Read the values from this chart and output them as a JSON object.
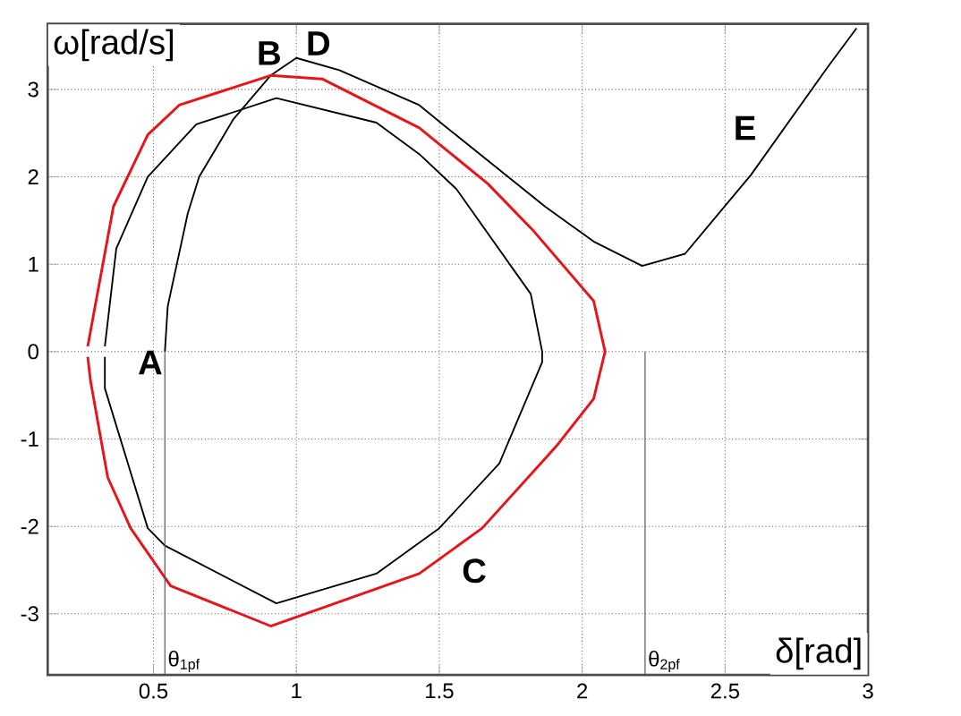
{
  "chart_data": {
    "type": "line",
    "xlabel": "δ[rad]",
    "ylabel": "ω[rad/s]",
    "xlim": [
      0.13,
      3
    ],
    "ylim": [
      -3.7,
      3.75
    ],
    "xticks": [
      0.5,
      1,
      1.5,
      2,
      2.5,
      3
    ],
    "yticks": [
      -3,
      -2,
      -1,
      0,
      1,
      2,
      3
    ],
    "grid": true,
    "line_style": "solid",
    "series": [
      {
        "color": "#000000",
        "x": [
          0.54,
          0.55,
          0.62,
          0.66,
          0.78,
          0.91,
          1.0,
          1.15,
          1.43,
          1.52,
          1.87,
          2.04,
          2.21,
          2.36,
          2.59,
          2.86,
          2.96
        ],
        "values": [
          0,
          0.52,
          1.58,
          2,
          2.66,
          3.16,
          3.36,
          3.22,
          2.82,
          2.58,
          1.66,
          1.26,
          0.98,
          1.12,
          2.02,
          3.26,
          3.7
        ]
      },
      {
        "color": "#000000",
        "x": [
          0.33,
          0.37,
          0.48,
          0.65,
          0.93,
          1.28,
          1.43,
          1.56,
          1.82,
          1.86,
          1.86,
          1.71,
          1.5,
          1.28,
          0.93,
          0.54,
          0.48,
          0.33,
          0.33
        ],
        "values": [
          0.06,
          1.18,
          2.0,
          2.6,
          2.9,
          2.62,
          2.26,
          1.86,
          0.66,
          0,
          -0.12,
          -1.28,
          -2.02,
          -2.54,
          -2.88,
          -2.22,
          -2.02,
          -0.42,
          -0.06
        ]
      },
      {
        "color": "#e8141a",
        "x": [
          0.27,
          0.36,
          0.48,
          0.59,
          0.91,
          1.09,
          1.43,
          1.67,
          1.83,
          2.04,
          2.08,
          2.04,
          1.91,
          1.65,
          1.43,
          0.91,
          0.56,
          0.42,
          0.34,
          0.28,
          0.27
        ],
        "values": [
          0.06,
          1.66,
          2.48,
          2.82,
          3.16,
          3.12,
          2.56,
          1.92,
          1.38,
          0.58,
          0,
          -0.54,
          -1.08,
          -2.02,
          -2.54,
          -3.14,
          -2.68,
          -2.02,
          -1.44,
          -0.34,
          -0.06
        ]
      }
    ],
    "ref_lines": [
      {
        "axis": "x",
        "value": 0.54,
        "label": "θ$_{1pf}$"
      },
      {
        "axis": "x",
        "value": 2.22,
        "label": "θ$_{2pf}$"
      }
    ],
    "annotations": [
      "A",
      "B",
      "C",
      "D",
      "E"
    ]
  }
}
